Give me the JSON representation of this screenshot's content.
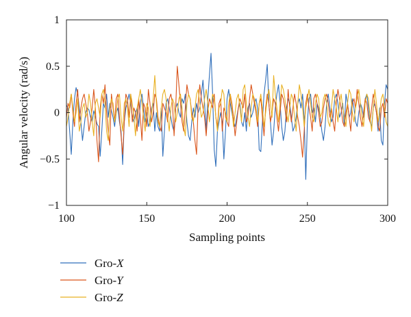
{
  "chart_data": {
    "type": "line",
    "title": "",
    "xlabel": "Sampling points",
    "ylabel": "Angular velocity (rad/s)",
    "xlim": [
      100,
      300
    ],
    "ylim": [
      -1,
      1
    ],
    "xticks": [
      100,
      150,
      200,
      250,
      300
    ],
    "yticks": [
      -1,
      -0.5,
      0,
      0.5,
      1
    ],
    "xtick_labels": [
      "100",
      "150",
      "200",
      "250",
      "300"
    ],
    "ytick_labels": [
      "−1",
      "−0.5",
      "0",
      "0.5",
      "1"
    ],
    "grid": false,
    "legend": {
      "placement": "below-left"
    },
    "series": [
      {
        "name": "Gro-X",
        "name_prefix": "Gro-",
        "name_axis": "X",
        "color": "#2f6eba",
        "x_start": 100,
        "x_step": 1,
        "values": [
          0.08,
          0.05,
          -0.2,
          -0.45,
          -0.1,
          0.15,
          0.27,
          0.2,
          0.05,
          -0.1,
          -0.3,
          -0.15,
          0.0,
          0.05,
          0.03,
          -0.05,
          -0.1,
          0.02,
          -0.05,
          -0.12,
          -0.15,
          -0.47,
          -0.2,
          0.1,
          0.05,
          0.2,
          -0.05,
          0.1,
          0.02,
          -0.05,
          -0.15,
          0.0,
          0.05,
          -0.1,
          -0.2,
          -0.56,
          -0.1,
          0.05,
          0.12,
          0.2,
          0.1,
          -0.05,
          -0.1,
          0.0,
          0.05,
          -0.15,
          0.1,
          0.2,
          0.05,
          -0.1,
          0.0,
          -0.15,
          -0.1,
          0.05,
          0.1,
          -0.2,
          0.0,
          -0.15,
          -0.2,
          0.05,
          -0.47,
          -0.2,
          0.1,
          0.15,
          0.05,
          -0.05,
          -0.15,
          -0.2,
          0.05,
          0.1,
          0.0,
          -0.05,
          0.15,
          0.1,
          0.2,
          -0.1,
          -0.25,
          -0.3,
          -0.1,
          0.05,
          -0.05,
          0.1,
          0.0,
          0.05,
          0.2,
          0.35,
          0.1,
          -0.2,
          0.15,
          0.4,
          0.64,
          0.2,
          -0.4,
          -0.58,
          -0.2,
          -0.1,
          0.0,
          -0.1,
          -0.5,
          -0.2,
          0.15,
          0.25,
          0.1,
          0.0,
          -0.1,
          -0.15,
          -0.05,
          0.05,
          0.1,
          -0.1,
          -0.15,
          0.0,
          -0.2,
          0.05,
          0.1,
          -0.05,
          0.0,
          0.1,
          0.15,
          0.05,
          -0.4,
          -0.42,
          -0.1,
          0.2,
          0.35,
          0.52,
          0.1,
          -0.1,
          -0.35,
          -0.2,
          0.05,
          0.2,
          0.3,
          0.1,
          -0.15,
          -0.3,
          -0.2,
          0.05,
          0.15,
          0.1,
          -0.05,
          -0.2,
          -0.15,
          -0.05,
          0.1,
          0.15,
          0.05,
          0.2,
          -0.05,
          -0.72,
          -0.1,
          0.15,
          0.2,
          0.0,
          0.05,
          -0.1,
          0.1,
          0.05,
          -0.05,
          -0.2,
          -0.3,
          -0.15,
          0.1,
          0.2,
          0.05,
          -0.1,
          -0.05,
          0.15,
          0.2,
          0.1,
          -0.05,
          0.0,
          0.1,
          -0.15,
          0.2,
          0.1,
          -0.05,
          0.0,
          0.15,
          0.05,
          -0.1,
          -0.15,
          0.0,
          0.1,
          0.05,
          -0.05,
          0.15,
          0.2,
          0.05,
          -0.1,
          -0.15,
          0.05,
          0.1,
          0.0,
          -0.2,
          0.05,
          -0.3,
          -0.35,
          0.1,
          0.3,
          0.25
        ]
      },
      {
        "name": "Gro-Y",
        "name_prefix": "Gro-",
        "name_axis": "Y",
        "color": "#d95319",
        "x_start": 100,
        "x_step": 1,
        "values": [
          -0.05,
          0.1,
          0.05,
          0.2,
          0.0,
          -0.15,
          0.1,
          0.25,
          -0.1,
          0.05,
          0.15,
          0.2,
          0.1,
          0.0,
          -0.2,
          -0.1,
          0.05,
          0.25,
          0.05,
          -0.3,
          -0.53,
          0.05,
          0.2,
          0.1,
          0.3,
          0.0,
          -0.2,
          -0.35,
          0.2,
          0.05,
          -0.1,
          0.15,
          0.2,
          -0.05,
          -0.25,
          -0.45,
          -0.1,
          0.2,
          0.15,
          -0.05,
          0.2,
          -0.1,
          0.05,
          0.0,
          -0.2,
          0.15,
          -0.05,
          -0.3,
          0.1,
          0.05,
          -0.15,
          0.25,
          0.1,
          -0.1,
          0.0,
          0.2,
          0.15,
          -0.05,
          -0.15,
          -0.2,
          0.1,
          0.05,
          0.0,
          -0.1,
          0.15,
          0.2,
          0.1,
          -0.25,
          0.05,
          0.5,
          0.3,
          0.1,
          -0.1,
          -0.2,
          0.05,
          0.3,
          0.2,
          0.15,
          0.0,
          -0.1,
          -0.3,
          -0.45,
          0.1,
          0.3,
          0.15,
          0.05,
          -0.05,
          -0.25,
          0.0,
          0.15,
          0.1,
          0.05,
          0.2,
          -0.05,
          -0.15,
          0.1,
          0.15,
          -0.2,
          0.05,
          0.0,
          -0.1,
          -0.15,
          0.2,
          0.1,
          -0.05,
          -0.25,
          -0.1,
          0.05,
          0.15,
          0.1,
          0.05,
          0.2,
          -0.1,
          -0.05,
          0.15,
          0.3,
          0.2,
          0.1,
          0.0,
          -0.15,
          0.1,
          0.15,
          -0.05,
          -0.25,
          0.05,
          0.2,
          0.1,
          -0.1,
          0.0,
          0.15,
          0.1,
          -0.05,
          -0.2,
          0.0,
          0.2,
          0.15,
          0.05,
          -0.1,
          0.25,
          0.05,
          -0.1,
          0.05,
          0.2,
          0.1,
          -0.05,
          -0.15,
          -0.3,
          -0.48,
          -0.2,
          0.1,
          0.2,
          0.05,
          -0.05,
          -0.2,
          0.15,
          0.2,
          0.1,
          0.0,
          -0.15,
          -0.1,
          0.05,
          0.15,
          0.2,
          0.1,
          -0.05,
          0.05,
          -0.1,
          -0.2,
          0.1,
          0.25,
          0.15,
          0.05,
          -0.1,
          -0.15,
          0.0,
          0.1,
          -0.05,
          -0.2,
          0.1,
          0.15,
          0.05,
          0.25,
          0.1,
          -0.05,
          -0.15,
          0.0,
          0.15,
          0.1,
          -0.05,
          -0.1,
          0.05,
          0.2,
          0.1,
          0.0,
          -0.15,
          -0.2,
          0.05,
          0.1,
          -0.05,
          0.15,
          0.1
        ]
      },
      {
        "name": "Gro-Z",
        "name_prefix": "Gro-",
        "name_axis": "Z",
        "color": "#e8b021",
        "x_start": 100,
        "x_step": 1,
        "values": [
          -0.15,
          -0.05,
          0.1,
          0.2,
          0.05,
          -0.1,
          0.0,
          0.15,
          -0.2,
          -0.1,
          0.05,
          0.1,
          -0.05,
          0.0,
          0.2,
          0.1,
          -0.1,
          -0.25,
          0.1,
          0.15,
          0.05,
          -0.05,
          0.2,
          0.25,
          0.1,
          -0.2,
          -0.3,
          0.05,
          0.15,
          0.1,
          -0.1,
          0.0,
          0.15,
          0.2,
          -0.05,
          -0.2,
          0.1,
          0.15,
          0.05,
          -0.15,
          0.2,
          0.1,
          -0.05,
          -0.25,
          0.05,
          0.15,
          0.25,
          0.1,
          -0.05,
          -0.2,
          0.1,
          0.05,
          -0.15,
          0.0,
          0.15,
          0.4,
          0.1,
          -0.1,
          -0.15,
          0.05,
          0.2,
          0.25,
          0.15,
          -0.05,
          -0.2,
          0.05,
          0.15,
          0.1,
          -0.1,
          0.0,
          0.15,
          0.2,
          0.05,
          -0.15,
          -0.25,
          0.1,
          0.2,
          0.15,
          -0.05,
          -0.1,
          0.05,
          0.2,
          0.25,
          0.1,
          -0.05,
          0.0,
          0.15,
          0.25,
          0.1,
          -0.1,
          0.05,
          0.2,
          0.15,
          -0.05,
          -0.2,
          0.05,
          0.1,
          0.25,
          0.2,
          -0.05,
          -0.1,
          0.1,
          0.2,
          0.05,
          -0.15,
          0.0,
          0.15,
          0.2,
          0.05,
          -0.1,
          0.25,
          0.3,
          0.1,
          -0.05,
          -0.15,
          0.05,
          0.2,
          0.15,
          0.05,
          -0.1,
          0.1,
          0.2,
          0.05,
          -0.15,
          0.0,
          0.15,
          0.25,
          0.1,
          -0.05,
          0.4,
          0.2,
          0.05,
          -0.1,
          0.1,
          0.3,
          0.25,
          0.15,
          0.0,
          -0.1,
          0.05,
          0.2,
          0.15,
          -0.05,
          -0.2,
          0.1,
          0.3,
          0.2,
          0.05,
          -0.15,
          0.05,
          0.15,
          0.25,
          0.1,
          -0.05,
          -0.1,
          0.1,
          0.2,
          0.15,
          -0.05,
          0.0,
          0.15,
          0.2,
          0.1,
          -0.1,
          -0.15,
          0.05,
          0.25,
          0.15,
          0.05,
          -0.1,
          0.1,
          0.2,
          0.05,
          -0.05,
          -0.15,
          0.1,
          0.25,
          0.2,
          0.0,
          -0.1,
          0.05,
          0.15,
          0.25,
          0.1,
          -0.05,
          -0.15,
          0.1,
          0.2,
          0.15,
          -0.05,
          -0.2,
          0.05,
          0.25,
          0.1,
          -0.1,
          0.0,
          0.15,
          0.2,
          0.05,
          -0.1,
          -0.15
        ]
      }
    ]
  }
}
